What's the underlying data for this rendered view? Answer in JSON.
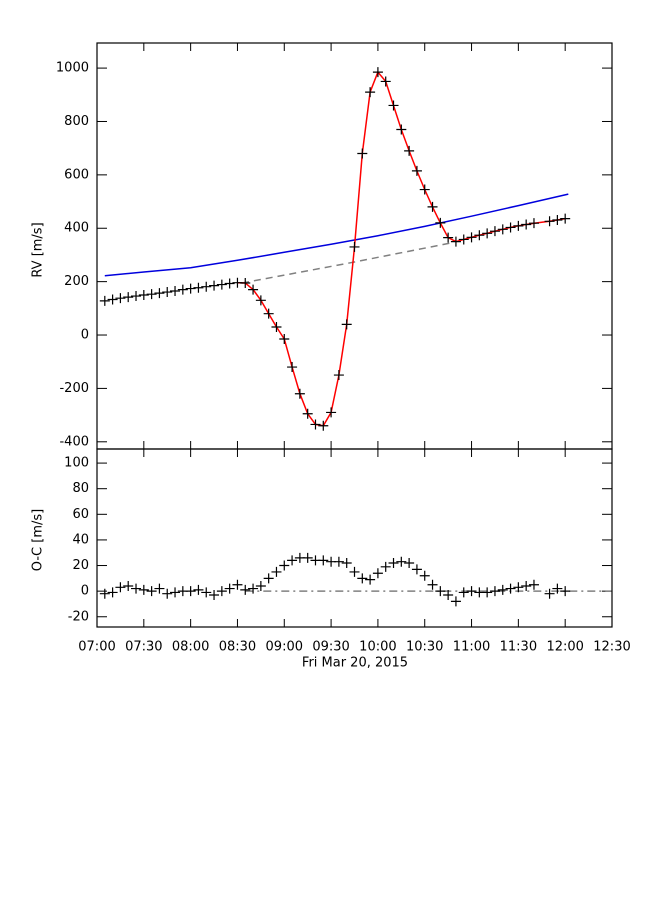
{
  "chart_data": [
    {
      "type": "line",
      "ylabel": "RV [m/s]",
      "x": [
        "07:05",
        "07:10",
        "07:15",
        "07:20",
        "07:25",
        "07:30",
        "07:35",
        "07:40",
        "07:45",
        "07:50",
        "07:55",
        "08:00",
        "08:05",
        "08:10",
        "08:15",
        "08:20",
        "08:25",
        "08:30",
        "08:35",
        "08:40",
        "08:45",
        "08:50",
        "08:55",
        "09:00",
        "09:05",
        "09:10",
        "09:15",
        "09:20",
        "09:25",
        "09:30",
        "09:35",
        "09:40",
        "09:45",
        "09:50",
        "09:55",
        "10:00",
        "10:05",
        "10:10",
        "10:15",
        "10:20",
        "10:25",
        "10:30",
        "10:35",
        "10:40",
        "10:45",
        "10:50",
        "10:55",
        "11:00",
        "11:05",
        "11:10",
        "11:15",
        "11:20",
        "11:25",
        "11:30",
        "11:35",
        "11:40",
        "11:50",
        "11:55",
        "12:00"
      ],
      "xlim": [
        "07:00",
        "12:30"
      ],
      "ylim": [
        -427,
        1094
      ],
      "yticks": [
        -400,
        -200,
        0,
        200,
        400,
        600,
        800,
        1000
      ],
      "series": [
        {
          "color": "#0000dd",
          "x": [
            "07:05",
            "07:30",
            "08:00",
            "08:30",
            "09:00",
            "09:30",
            "10:00",
            "10:30",
            "11:00",
            "11:30",
            "12:02"
          ],
          "values": [
            222,
            236,
            252,
            280,
            310,
            340,
            372,
            407,
            445,
            485,
            528
          ]
        },
        {
          "color": "#808080",
          "style": "dashed",
          "x": [
            "08:33",
            "09:40",
            "10:47"
          ],
          "values": [
            195,
            268,
            345
          ]
        },
        {
          "color": "#ff0000",
          "values": [
            null,
            null,
            null,
            null,
            null,
            null,
            null,
            null,
            null,
            null,
            null,
            null,
            null,
            null,
            null,
            null,
            null,
            196,
            195,
            170,
            130,
            80,
            30,
            -15,
            -120,
            -220,
            -295,
            -335,
            -340,
            -290,
            -150,
            40,
            330,
            680,
            910,
            985,
            950,
            860,
            770,
            690,
            615,
            545,
            480,
            420,
            365,
            350,
            358,
            366,
            374,
            381,
            389,
            396,
            403,
            409,
            414,
            419,
            426,
            431,
            436
          ]
        },
        {
          "color": "#000000",
          "marker": "+",
          "values": [
            128,
            133,
            138,
            142,
            146,
            150,
            153,
            157,
            161,
            165,
            170,
            174,
            177,
            181,
            185,
            189,
            193,
            196,
            195,
            170,
            130,
            80,
            30,
            -15,
            -120,
            -220,
            -295,
            -335,
            -340,
            -290,
            -150,
            40,
            330,
            680,
            910,
            985,
            950,
            860,
            770,
            690,
            615,
            545,
            480,
            420,
            365,
            350,
            358,
            366,
            374,
            381,
            389,
            396,
            403,
            409,
            414,
            419,
            426,
            431,
            436
          ]
        }
      ]
    },
    {
      "type": "line",
      "ylabel": "O-C [m/s]",
      "xlabel": "Fri Mar 20, 2015",
      "x": [
        "07:05",
        "07:10",
        "07:15",
        "07:20",
        "07:25",
        "07:30",
        "07:35",
        "07:40",
        "07:45",
        "07:50",
        "07:55",
        "08:00",
        "08:05",
        "08:10",
        "08:15",
        "08:20",
        "08:25",
        "08:30",
        "08:35",
        "08:40",
        "08:45",
        "08:50",
        "08:55",
        "09:00",
        "09:05",
        "09:10",
        "09:15",
        "09:20",
        "09:25",
        "09:30",
        "09:35",
        "09:40",
        "09:45",
        "09:50",
        "09:55",
        "10:00",
        "10:05",
        "10:10",
        "10:15",
        "10:20",
        "10:25",
        "10:30",
        "10:35",
        "10:40",
        "10:45",
        "10:50",
        "10:55",
        "11:00",
        "11:05",
        "11:10",
        "11:15",
        "11:20",
        "11:25",
        "11:30",
        "11:35",
        "11:40",
        "11:50",
        "11:55",
        "12:00"
      ],
      "xlim": [
        "07:00",
        "12:30"
      ],
      "ylim": [
        -28,
        111
      ],
      "xticks": [
        "07:00",
        "07:30",
        "08:00",
        "08:30",
        "09:00",
        "09:30",
        "10:00",
        "10:30",
        "11:00",
        "11:30",
        "12:00",
        "12:30"
      ],
      "yticks": [
        -20,
        0,
        20,
        40,
        60,
        80,
        100
      ],
      "series": [
        {
          "color": "#808080",
          "style": "dashdot",
          "x": [
            "08:35",
            "12:30"
          ],
          "values": [
            0,
            0
          ]
        },
        {
          "color": "#000000",
          "marker": "+",
          "values": [
            -2,
            -1,
            3,
            4,
            2,
            1,
            0,
            2,
            -2,
            -1,
            0,
            0,
            1,
            -1,
            -3,
            0,
            2,
            5,
            1,
            2,
            4,
            10,
            15,
            20,
            24,
            26,
            26,
            24,
            24,
            23,
            23,
            22,
            15,
            10,
            9,
            14,
            19,
            22,
            23,
            22,
            17,
            12,
            5,
            0,
            -3,
            -8,
            -1,
            0,
            -1,
            -1,
            0,
            1,
            2,
            3,
            4,
            5,
            -2,
            2,
            0
          ]
        }
      ]
    }
  ]
}
